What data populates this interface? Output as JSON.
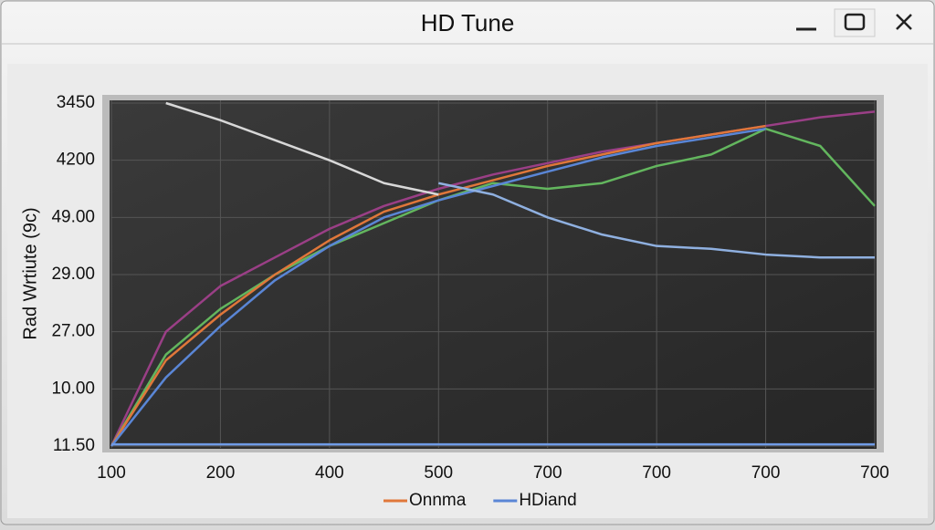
{
  "window": {
    "title": "HD Tune"
  },
  "chart_data": {
    "type": "line",
    "ylabel": "Rad Wrtiute (9c)",
    "x": [
      0,
      0.5,
      1,
      1.5,
      2,
      2.5,
      3,
      3.5,
      4,
      4.5,
      5,
      5.5,
      6,
      6.5,
      7
    ],
    "xlim": [
      0,
      7
    ],
    "xticks": [
      {
        "value": 0,
        "label": "100"
      },
      {
        "value": 1,
        "label": "200"
      },
      {
        "value": 2,
        "label": "400"
      },
      {
        "value": 3,
        "label": "500"
      },
      {
        "value": 4,
        "label": "700"
      },
      {
        "value": 5,
        "label": "700"
      },
      {
        "value": 6,
        "label": "700"
      },
      {
        "value": 7,
        "label": "700"
      }
    ],
    "ylim": [
      0,
      6
    ],
    "yticks": [
      {
        "value": 0,
        "label": "11.50"
      },
      {
        "value": 1,
        "label": "10.00"
      },
      {
        "value": 2,
        "label": "27.00"
      },
      {
        "value": 3,
        "label": "29.00"
      },
      {
        "value": 4,
        "label": "49.00"
      },
      {
        "value": 5,
        "label": "4200"
      },
      {
        "value": 6,
        "label": "3450"
      }
    ],
    "grid": true,
    "series": [
      {
        "color": "#9a3f86",
        "values": [
          0,
          2.0,
          2.8,
          3.3,
          3.8,
          4.2,
          4.5,
          4.75,
          4.95,
          5.15,
          5.3,
          5.45,
          5.6,
          5.75,
          5.85
        ]
      },
      {
        "color": "#63b65e",
        "values": [
          0,
          1.6,
          2.4,
          3.0,
          3.5,
          3.9,
          4.3,
          4.6,
          4.5,
          4.6,
          4.9,
          5.1,
          5.55,
          5.25,
          4.2
        ]
      },
      {
        "name": "Onnma",
        "color": "#e0773a",
        "values": [
          0,
          1.5,
          2.3,
          3.0,
          3.6,
          4.1,
          4.4,
          4.65,
          4.9,
          5.1,
          5.3,
          5.45,
          5.6,
          null,
          null
        ]
      },
      {
        "name": "HDiand",
        "color": "#5a86d6",
        "values": [
          0,
          1.2,
          2.1,
          2.9,
          3.5,
          4.0,
          4.3,
          4.55,
          4.8,
          5.05,
          5.25,
          5.4,
          5.55,
          null,
          null
        ]
      },
      {
        "color": "#d8d8d8",
        "values": [
          null,
          6.0,
          5.7,
          5.35,
          5.0,
          4.6,
          4.4,
          null,
          null,
          null,
          null,
          null,
          null,
          null,
          null
        ]
      },
      {
        "color": "#8fb0e0",
        "values": [
          null,
          null,
          null,
          null,
          null,
          null,
          4.6,
          4.4,
          4.0,
          3.7,
          3.5,
          3.45,
          3.35,
          3.3,
          3.3
        ]
      },
      {
        "color": "#6f9be6",
        "values": [
          0.03,
          0.03,
          0.03,
          0.03,
          0.03,
          0.03,
          0.03,
          0.03,
          0.03,
          0.03,
          0.03,
          0.03,
          0.03,
          0.03,
          0.03
        ]
      }
    ]
  }
}
